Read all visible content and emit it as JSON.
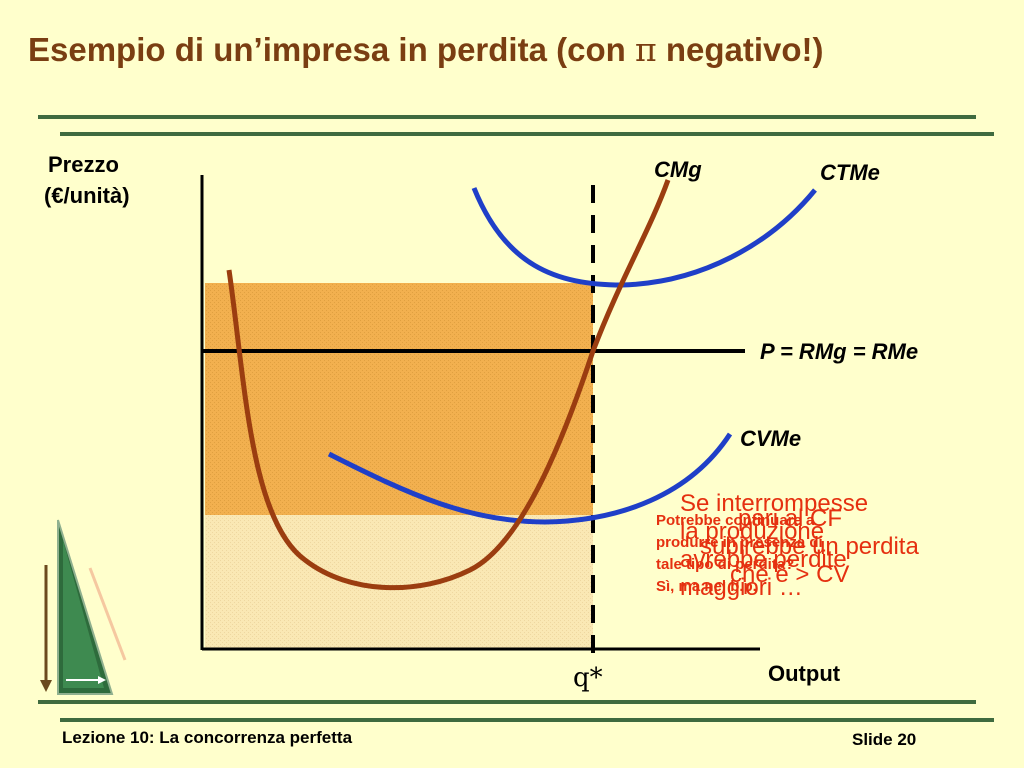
{
  "slide": {
    "title_text": "Esempio di un’impresa in perdita (con ",
    "title_symbol": "π",
    "title_end": " negativo!)",
    "footer_left": "Lezione 10: La concorrenza perfetta",
    "footer_right": "Slide 20"
  },
  "diagram": {
    "y_axis_label_line1": "Prezzo",
    "y_axis_label_line2": "(€/unità)",
    "x_axis_label": "Output",
    "q_star_label": "q*",
    "curves": {
      "cmg": "CMg",
      "ctme": "CTMe",
      "cvme": "CVMe",
      "price_line": "P = RMg = RMe"
    },
    "colors": {
      "cmg": "#9B3D10",
      "average_costs": "#1F3FC8",
      "loss_area": "#F2B04F",
      "variable_cost_area": "#F7E3A8",
      "note_text": "#E53010"
    }
  },
  "notes": {
    "small_lines": [
      "Potrebbe continuare a",
      "produrre in presenza di",
      "tale tipo di perdita?",
      "Sì, ma nel b.p."
    ],
    "large_lines": [
      "Se interrompesse",
      "la produzione",
      "avrebbe perdite",
      "maggiori …"
    ],
    "large_overlay_lines": [
      "pari al CF",
      "subirebbe un perdita",
      "che è > CV"
    ]
  }
}
